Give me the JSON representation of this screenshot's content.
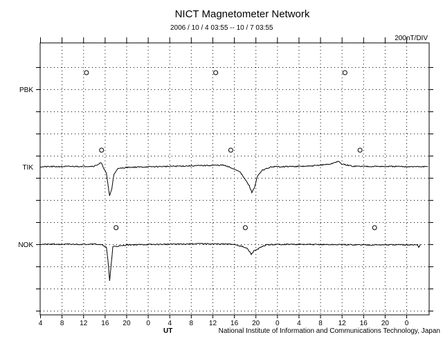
{
  "chart_data": {
    "type": "line",
    "title": "NICT Magnetometer Network",
    "subtitle": "2006 / 10 / 4   03:55 -- 10 / 7   03:55",
    "scale_label": "200nT/DIV",
    "xlabel": "UT",
    "credit": "National Institute of Information and Communications Technology, Japan",
    "x_unit": "hours since 2006/10/4 04:00 UT",
    "xlim": [
      0,
      72.5
    ],
    "x_tick_labels": [
      "4",
      "8",
      "12",
      "16",
      "20",
      "0",
      "4",
      "8",
      "12",
      "16",
      "20",
      "0",
      "4",
      "8",
      "12",
      "16",
      "20",
      "0"
    ],
    "y_unit": "nT",
    "nT_per_div": 200,
    "grid": true,
    "series": [
      {
        "name": "PBK",
        "points": [],
        "midnight_markers": [
          8.6,
          32.6,
          56.6
        ]
      },
      {
        "name": "TIK",
        "points": [
          [
            0,
            0
          ],
          [
            10,
            5
          ],
          [
            11.3,
            35
          ],
          [
            11.8,
            -10
          ],
          [
            12.3,
            -60
          ],
          [
            12.7,
            -200
          ],
          [
            12.9,
            -260
          ],
          [
            13.3,
            -200
          ],
          [
            13.7,
            -70
          ],
          [
            14.3,
            -20
          ],
          [
            16,
            -5
          ],
          [
            25,
            5
          ],
          [
            34,
            15
          ],
          [
            35.5,
            -10
          ],
          [
            37,
            -40
          ],
          [
            38,
            -110
          ],
          [
            38.8,
            -170
          ],
          [
            39.3,
            -230
          ],
          [
            39.8,
            -190
          ],
          [
            40.3,
            -90
          ],
          [
            41.3,
            -30
          ],
          [
            43,
            0
          ],
          [
            50,
            5
          ],
          [
            54,
            25
          ],
          [
            55.3,
            50
          ],
          [
            56,
            25
          ],
          [
            58,
            5
          ],
          [
            72,
            0
          ]
        ],
        "midnight_markers": [
          11.4,
          35.4,
          59.4
        ]
      },
      {
        "name": "NOK",
        "points": [
          [
            0,
            0
          ],
          [
            8,
            0
          ],
          [
            10,
            5
          ],
          [
            11.8,
            -10
          ],
          [
            12.3,
            -30
          ],
          [
            12.6,
            -150
          ],
          [
            12.9,
            -330
          ],
          [
            13.2,
            -180
          ],
          [
            13.5,
            -20
          ],
          [
            15,
            -15
          ],
          [
            16,
            -5
          ],
          [
            30,
            5
          ],
          [
            36,
            0
          ],
          [
            37.5,
            -20
          ],
          [
            38.5,
            -40
          ],
          [
            39.2,
            -90
          ],
          [
            39.7,
            -60
          ],
          [
            40.5,
            -40
          ],
          [
            42,
            -5
          ],
          [
            45,
            0
          ],
          [
            60,
            -5
          ],
          [
            70,
            -5
          ],
          [
            70.3,
            -30
          ],
          [
            70.6,
            0
          ]
        ],
        "midnight_markers": [
          14.1,
          38.1,
          62.1
        ]
      }
    ]
  }
}
